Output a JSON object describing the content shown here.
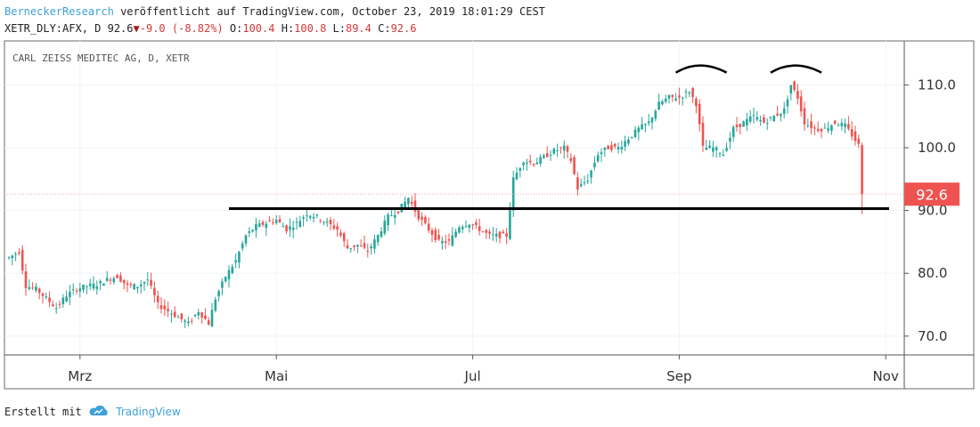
{
  "header": {
    "author": "BerneckerResearch",
    "published_text": "veröffentlicht auf TradingView.com, October 23, 2019 18:01:29 CEST",
    "symbol": "XETR_DLY:AFX, D",
    "last": "92.6",
    "change": "-9.0 (-8.82%)",
    "open_label": "O:",
    "open": "100.4",
    "high_label": "H:",
    "high": "100.8",
    "low_label": "L:",
    "low": "89.4",
    "close_label": "C:",
    "close": "92.6"
  },
  "footer": {
    "created_with": "Erstellt mit",
    "brand": "TradingView"
  },
  "colors": {
    "up": "#26a69a",
    "down": "#ef5350",
    "price_tag": "#ef5350",
    "grid": "#f0f3fa",
    "author": "#3ea0d8"
  },
  "chart_data": {
    "type": "candlestick",
    "title": "CARL ZEISS MEDITEC AG, D, XETR",
    "x_ticks": [
      "Mrz",
      "Mai",
      "Jul",
      "Sep",
      "Nov"
    ],
    "y_ticks": [
      "70.0",
      "80.0",
      "90.0",
      "100.0",
      "110.0"
    ],
    "ylim": [
      67,
      117
    ],
    "last_price_label": "92.6",
    "last_price": 92.6,
    "support_level": 90.3,
    "annotations": [
      "support line ~90.3",
      "two arcs marking double top near 111–112"
    ],
    "anchors": [
      [
        0,
        82.5
      ],
      [
        3,
        83.5
      ],
      [
        5,
        78
      ],
      [
        8,
        77.5
      ],
      [
        11,
        76
      ],
      [
        14,
        74.5
      ],
      [
        17,
        76.5
      ],
      [
        20,
        77.5
      ],
      [
        23,
        78
      ],
      [
        26,
        78.2
      ],
      [
        29,
        79
      ],
      [
        32,
        79.5
      ],
      [
        35,
        78
      ],
      [
        38,
        78
      ],
      [
        41,
        79
      ],
      [
        44,
        75
      ],
      [
        47,
        74
      ],
      [
        50,
        73
      ],
      [
        53,
        72
      ],
      [
        56,
        74
      ],
      [
        59,
        72
      ],
      [
        61,
        76
      ],
      [
        64,
        79.5
      ],
      [
        67,
        82
      ],
      [
        70,
        86
      ],
      [
        73,
        87.5
      ],
      [
        76,
        88
      ],
      [
        79,
        88.5
      ],
      [
        82,
        87
      ],
      [
        85,
        88
      ],
      [
        88,
        89.5
      ],
      [
        91,
        89
      ],
      [
        94,
        88
      ],
      [
        97,
        87
      ],
      [
        100,
        84
      ],
      [
        103,
        84.5
      ],
      [
        106,
        83.5
      ],
      [
        109,
        86
      ],
      [
        112,
        89
      ],
      [
        115,
        90
      ],
      [
        118,
        92
      ],
      [
        121,
        89
      ],
      [
        124,
        87
      ],
      [
        127,
        85
      ],
      [
        130,
        85
      ],
      [
        133,
        87.5
      ],
      [
        136,
        88
      ],
      [
        139,
        87
      ],
      [
        142,
        86
      ],
      [
        145,
        86
      ],
      [
        147,
        86
      ],
      [
        149,
        95
      ],
      [
        152,
        98
      ],
      [
        155,
        97.5
      ],
      [
        158,
        98.5
      ],
      [
        161,
        99.5
      ],
      [
        164,
        100
      ],
      [
        166,
        98
      ],
      [
        168,
        93.5
      ],
      [
        171,
        95
      ],
      [
        174,
        99
      ],
      [
        177,
        100
      ],
      [
        180,
        100
      ],
      [
        183,
        101.5
      ],
      [
        186,
        103
      ],
      [
        189,
        104
      ],
      [
        192,
        107
      ],
      [
        195,
        108
      ],
      [
        198,
        108
      ],
      [
        201,
        109
      ],
      [
        203,
        107
      ],
      [
        205,
        100
      ],
      [
        208,
        100
      ],
      [
        211,
        99
      ],
      [
        214,
        103
      ],
      [
        217,
        104
      ],
      [
        220,
        105
      ],
      [
        223,
        104
      ],
      [
        226,
        105
      ],
      [
        229,
        106
      ],
      [
        231,
        110
      ],
      [
        233,
        108
      ],
      [
        235,
        104
      ],
      [
        238,
        103
      ],
      [
        241,
        103
      ],
      [
        244,
        104
      ],
      [
        247,
        103.5
      ],
      [
        249,
        102
      ],
      [
        251,
        100.4
      ]
    ],
    "last_bar": {
      "open": 100.4,
      "high": 100.8,
      "low": 89.4,
      "close": 92.6
    }
  }
}
